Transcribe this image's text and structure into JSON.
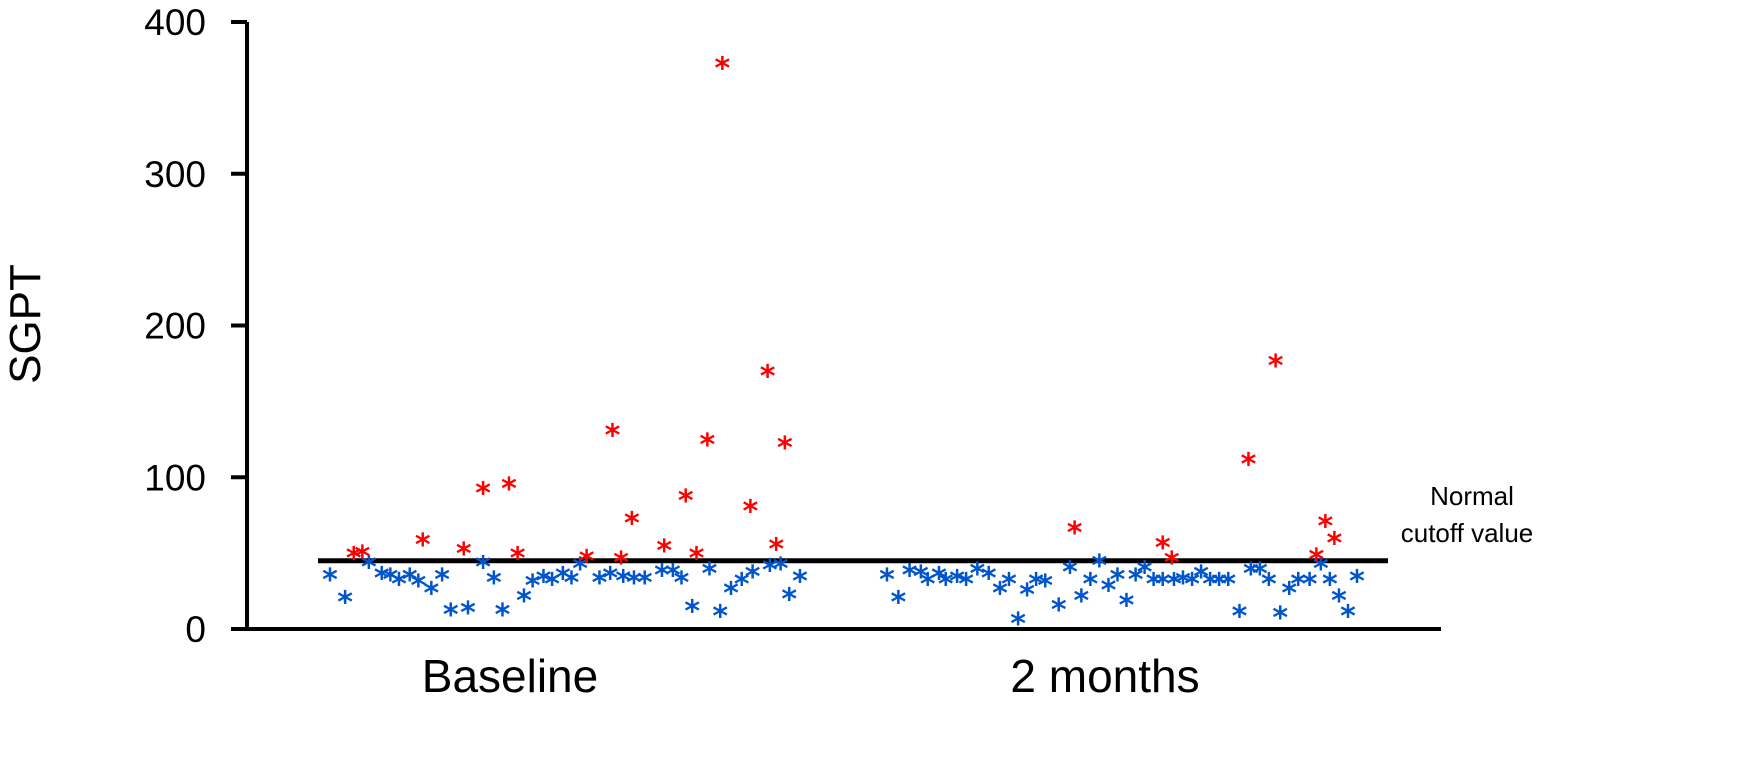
{
  "chart_data": {
    "type": "scatter",
    "title": "",
    "ylabel": "SGPT",
    "xlabel": "",
    "ylim": [
      0,
      400
    ],
    "yticks": [
      "0",
      "100",
      "200",
      "300",
      "400"
    ],
    "groups": [
      "Baseline",
      "2 months"
    ],
    "cutoff": {
      "value": 45,
      "label_line1": "Normal",
      "label_line2": "cutoff value"
    },
    "grid": false,
    "colors": {
      "above": "#ff0000",
      "below": "#0055cc",
      "axis": "#000000"
    },
    "series": [
      {
        "group": "Baseline",
        "color": "#0055cc",
        "points": [
          [
            0.0,
            37
          ],
          [
            0.7,
            22
          ],
          [
            1.8,
            45
          ],
          [
            2.4,
            38
          ],
          [
            2.8,
            37
          ],
          [
            3.2,
            34
          ],
          [
            3.7,
            37
          ],
          [
            4.1,
            33
          ],
          [
            4.7,
            28
          ],
          [
            5.2,
            37
          ],
          [
            5.6,
            14
          ],
          [
            6.4,
            15
          ],
          [
            7.1,
            45
          ],
          [
            7.6,
            35
          ],
          [
            8.0,
            14
          ],
          [
            9.0,
            23
          ],
          [
            9.4,
            33
          ],
          [
            9.9,
            36
          ],
          [
            10.3,
            34
          ],
          [
            10.8,
            38
          ],
          [
            11.2,
            35
          ],
          [
            11.6,
            44
          ],
          [
            12.5,
            35
          ],
          [
            13.0,
            38
          ],
          [
            13.6,
            36
          ],
          [
            14.1,
            35
          ],
          [
            14.6,
            35
          ],
          [
            15.4,
            40
          ],
          [
            15.9,
            40
          ],
          [
            16.3,
            35
          ],
          [
            16.8,
            16
          ],
          [
            17.6,
            41
          ],
          [
            18.1,
            13
          ],
          [
            18.6,
            28
          ],
          [
            19.1,
            34
          ],
          [
            19.6,
            39
          ],
          [
            20.4,
            43
          ],
          [
            20.9,
            44
          ],
          [
            21.3,
            24
          ],
          [
            21.8,
            36
          ]
        ]
      },
      {
        "group": "Baseline",
        "color": "#ff0000",
        "points": [
          [
            1.1,
            51
          ],
          [
            1.5,
            52
          ],
          [
            4.3,
            60
          ],
          [
            6.2,
            54
          ],
          [
            7.1,
            94
          ],
          [
            8.3,
            97
          ],
          [
            8.7,
            51
          ],
          [
            11.9,
            49
          ],
          [
            13.1,
            132
          ],
          [
            13.5,
            48
          ],
          [
            14.0,
            74
          ],
          [
            15.5,
            56
          ],
          [
            16.5,
            89
          ],
          [
            17.0,
            51
          ],
          [
            17.5,
            126
          ],
          [
            18.2,
            374
          ],
          [
            19.5,
            82
          ],
          [
            20.3,
            171
          ],
          [
            20.7,
            57
          ],
          [
            21.1,
            124
          ]
        ]
      },
      {
        "group": "2 months",
        "color": "#0055cc",
        "points": [
          [
            0.0,
            37
          ],
          [
            0.5,
            22
          ],
          [
            1.0,
            40
          ],
          [
            1.5,
            39
          ],
          [
            1.8,
            34
          ],
          [
            2.3,
            38
          ],
          [
            2.6,
            34
          ],
          [
            3.1,
            36
          ],
          [
            3.5,
            34
          ],
          [
            4.0,
            41
          ],
          [
            4.5,
            38
          ],
          [
            5.0,
            28
          ],
          [
            5.4,
            34
          ],
          [
            5.8,
            8
          ],
          [
            6.2,
            27
          ],
          [
            6.6,
            34
          ],
          [
            7.0,
            33
          ],
          [
            7.6,
            17
          ],
          [
            8.1,
            42
          ],
          [
            8.6,
            23
          ],
          [
            9.0,
            34
          ],
          [
            9.4,
            46
          ],
          [
            9.8,
            30
          ],
          [
            10.2,
            37
          ],
          [
            10.6,
            20
          ],
          [
            11.0,
            37
          ],
          [
            11.4,
            42
          ],
          [
            11.8,
            34
          ],
          [
            12.2,
            34
          ],
          [
            12.7,
            34
          ],
          [
            13.1,
            35
          ],
          [
            13.5,
            34
          ],
          [
            13.9,
            39
          ],
          [
            14.3,
            34
          ],
          [
            14.7,
            34
          ],
          [
            15.1,
            34
          ],
          [
            15.6,
            13
          ],
          [
            16.1,
            41
          ],
          [
            16.5,
            41
          ],
          [
            16.9,
            34
          ],
          [
            17.4,
            12
          ],
          [
            17.8,
            28
          ],
          [
            18.2,
            34
          ],
          [
            18.7,
            34
          ],
          [
            19.2,
            44
          ],
          [
            19.6,
            34
          ],
          [
            20.0,
            23
          ],
          [
            20.4,
            13
          ],
          [
            20.8,
            36
          ]
        ]
      },
      {
        "group": "2 months",
        "color": "#ff0000",
        "points": [
          [
            8.3,
            68
          ],
          [
            12.2,
            58
          ],
          [
            12.6,
            48
          ],
          [
            16.0,
            113
          ],
          [
            17.2,
            178
          ],
          [
            19.0,
            50
          ],
          [
            19.4,
            72
          ],
          [
            19.8,
            61
          ]
        ]
      }
    ]
  },
  "marker_glyph": "*"
}
